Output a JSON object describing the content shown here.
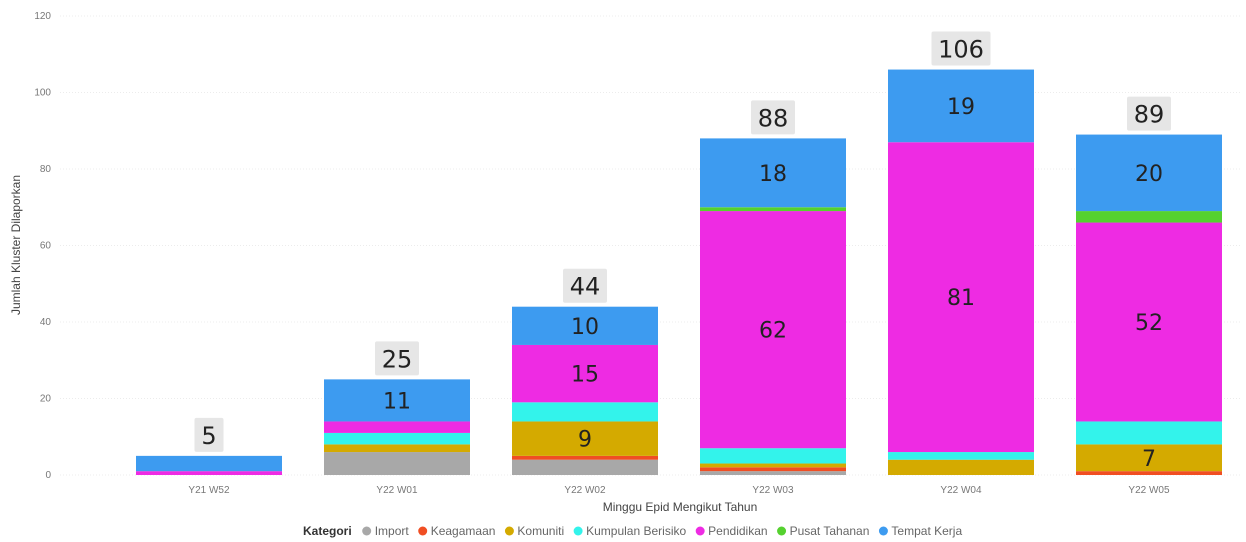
{
  "chart_data": {
    "type": "bar",
    "stacked": true,
    "title": "",
    "xlabel": "Minggu Epid Mengikut Tahun",
    "ylabel": "Jumlah Kluster Dilaporkan",
    "ylim": [
      0,
      120
    ],
    "yticks": [
      0,
      20,
      40,
      60,
      80,
      100,
      120
    ],
    "grid": true,
    "legend_position": "bottom",
    "legend_title": "Kategori",
    "categories": [
      "Y21 W52",
      "Y22 W01",
      "Y22 W02",
      "Y22 W03",
      "Y22 W04",
      "Y22 W05"
    ],
    "totals": [
      5,
      25,
      44,
      88,
      106,
      89
    ],
    "series": [
      {
        "name": "Import",
        "color": "#A8A8A8",
        "values": [
          0,
          6,
          4,
          1,
          0,
          0
        ],
        "labels": [
          null,
          null,
          null,
          null,
          null,
          null
        ]
      },
      {
        "name": "Keagamaan",
        "color": "#F04E23",
        "values": [
          0,
          0,
          1,
          1,
          0,
          1
        ],
        "labels": [
          null,
          null,
          null,
          null,
          null,
          null
        ]
      },
      {
        "name": "Komuniti",
        "color": "#D4AA00",
        "values": [
          0,
          2,
          9,
          1,
          4,
          7
        ],
        "labels": [
          null,
          null,
          "9",
          null,
          null,
          "7"
        ]
      },
      {
        "name": "Kumpulan Berisiko",
        "color": "#33F3EB",
        "values": [
          0,
          3,
          5,
          4,
          2,
          6
        ],
        "labels": [
          null,
          null,
          null,
          null,
          null,
          null
        ]
      },
      {
        "name": "Pendidikan",
        "color": "#EE2BE3",
        "values": [
          1,
          3,
          15,
          62,
          81,
          52
        ],
        "labels": [
          null,
          null,
          "15",
          "62",
          "81",
          "52"
        ]
      },
      {
        "name": "Pusat Tahanan",
        "color": "#55D12F",
        "values": [
          0,
          0,
          0,
          1,
          0,
          3
        ],
        "labels": [
          null,
          null,
          null,
          null,
          null,
          null
        ]
      },
      {
        "name": "Tempat Kerja",
        "color": "#3D9BF0",
        "values": [
          4,
          11,
          10,
          18,
          19,
          20
        ],
        "labels": [
          null,
          "11",
          "10",
          "18",
          "19",
          "20"
        ]
      }
    ]
  }
}
